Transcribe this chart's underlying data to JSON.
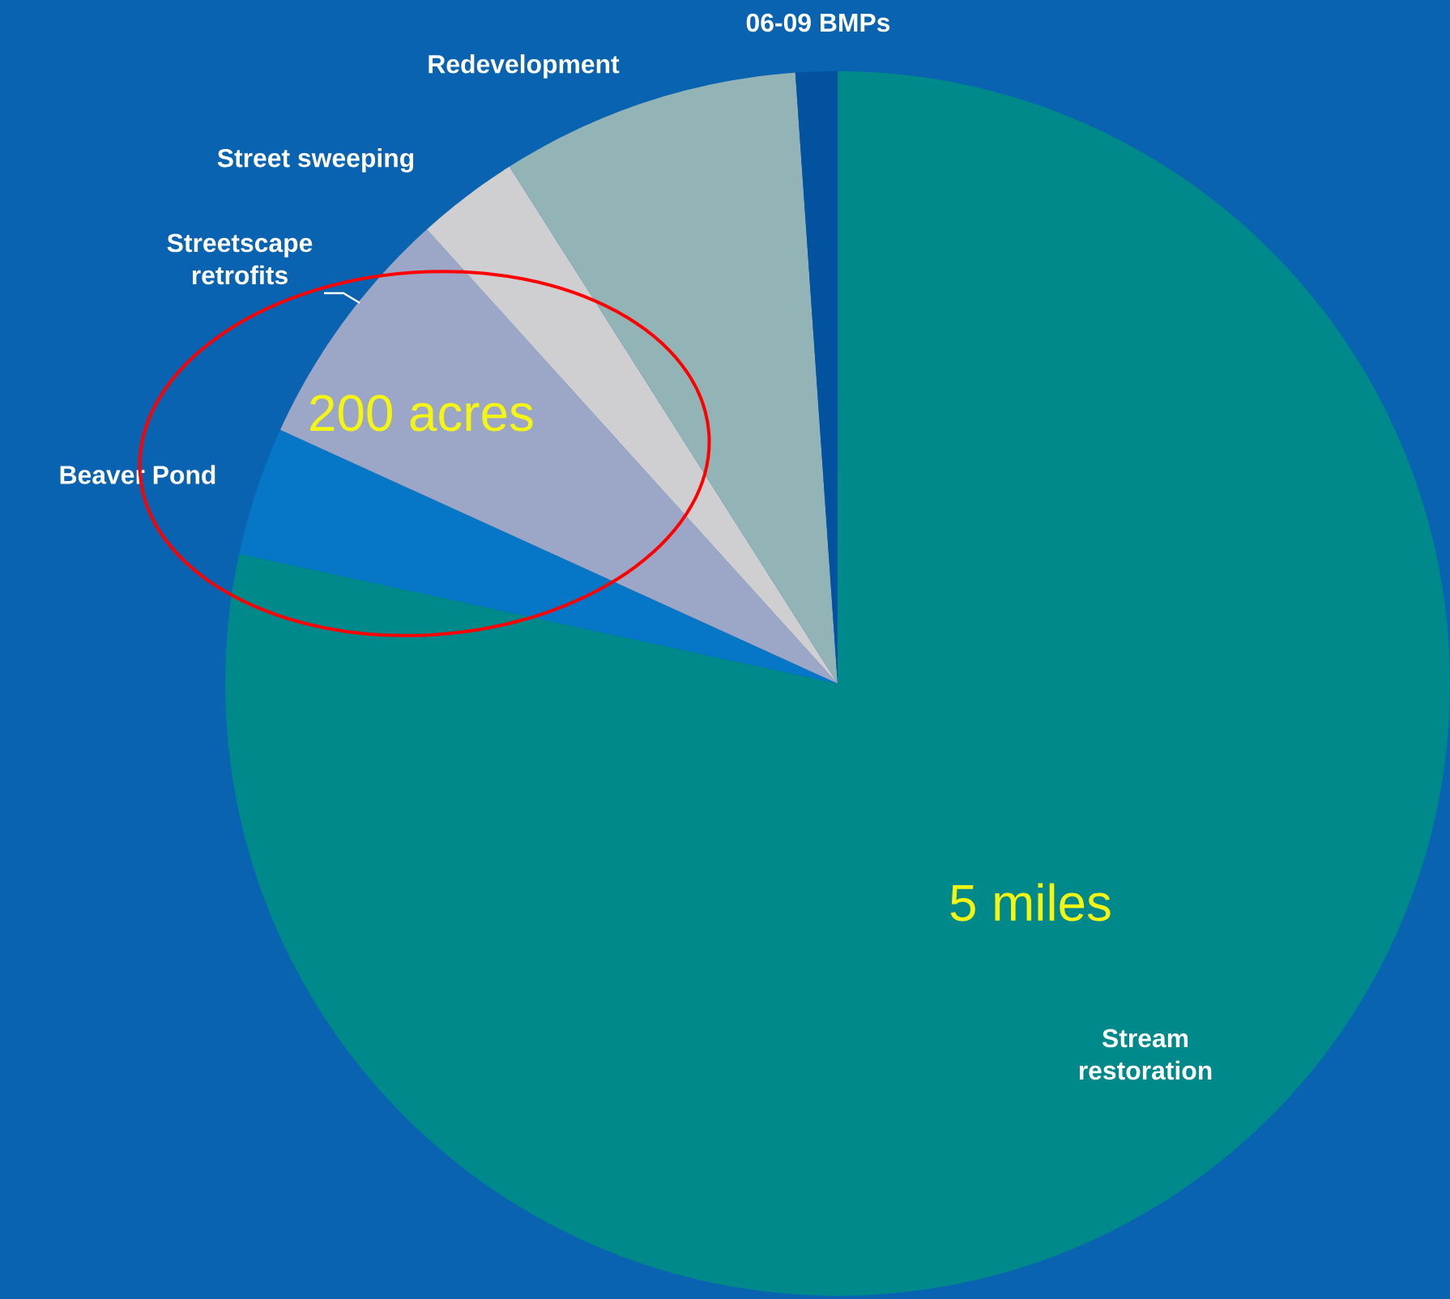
{
  "chart_data": {
    "type": "pie",
    "categories": [
      "Stream restoration",
      "Beaver Pond",
      "Streetscape retrofits",
      "Street sweeping",
      "Redevelopment",
      "06-09 BMPs"
    ],
    "values": [
      78.4,
      3.4,
      6.5,
      2.7,
      7.9,
      1.1
    ],
    "colors": [
      "#00898a",
      "#0577c6",
      "#9ca6c6",
      "#cfcfd1",
      "#93b4b6",
      "#0352a0"
    ],
    "annotations": [
      "5 miles",
      "200 acres"
    ]
  }
}
